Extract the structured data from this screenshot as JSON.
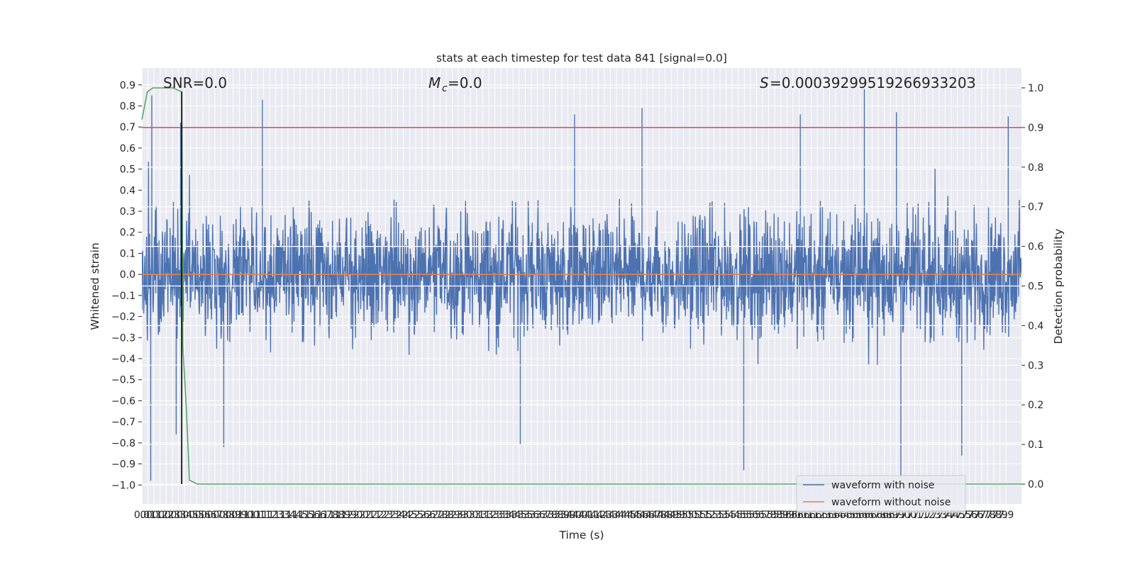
{
  "chart_data": {
    "type": "line",
    "title": "stats at each timestep for test data 841 [signal=0.0]",
    "xlabel": "Time (s)",
    "ylabel_left": "Whitened strain",
    "ylabel_right": "Detection probability",
    "xlim": [
      0.0,
      7.95
    ],
    "ylim_left": [
      -1.09,
      0.98
    ],
    "ylim_right": [
      -0.05,
      1.05
    ],
    "x_ticks": [
      "0.0",
      "0.1",
      "0.1",
      "0.2",
      "0.2",
      "0.3",
      "0.3",
      "0.4",
      "0.5",
      "0.5",
      "0.6",
      "0.6",
      "0.7",
      "0.8",
      "0.8",
      "0.9",
      "0.9",
      "1.0",
      "1.0",
      "1.1",
      "1.1",
      "1.2",
      "1.3",
      "1.3",
      "1.4",
      "1.4",
      "1.5",
      "1.5",
      "1.6",
      "1.6",
      "1.7",
      "1.8",
      "1.8",
      "1.9",
      "1.9",
      "2.0",
      "2.0",
      "2.1",
      "2.1",
      "2.2",
      "2.3",
      "2.3",
      "2.4",
      "2.4",
      "2.5",
      "2.5",
      "2.6",
      "2.6",
      "2.7",
      "2.8",
      "2.8",
      "2.9",
      "2.9",
      "3.0",
      "3.0",
      "3.1",
      "3.1",
      "3.2",
      "3.3",
      "3.3",
      "3.4",
      "3.4",
      "3.5",
      "3.5",
      "3.6",
      "3.6",
      "3.7",
      "3.8",
      "3.8",
      "3.9",
      "3.9",
      "4.0",
      "4.0",
      "4.1",
      "4.1",
      "4.2",
      "4.3",
      "4.3",
      "4.4",
      "4.4",
      "4.5",
      "4.5",
      "4.6",
      "4.6",
      "4.7",
      "4.8",
      "4.8",
      "4.9",
      "4.9",
      "5.0",
      "5.0",
      "5.1",
      "5.1",
      "5.2",
      "5.3",
      "5.3",
      "5.4",
      "5.4",
      "5.5",
      "5.5",
      "5.6",
      "5.6",
      "5.7",
      "5.8",
      "5.8",
      "5.9",
      "5.9",
      "6.0",
      "6.0",
      "6.1",
      "6.1",
      "6.2",
      "6.3",
      "6.3",
      "6.4",
      "6.4",
      "6.5",
      "6.5",
      "6.6",
      "6.6",
      "6.7",
      "6.8",
      "6.8",
      "6.9",
      "6.9",
      "7.0",
      "7.0",
      "7.1",
      "7.1",
      "7.2",
      "7.3",
      "7.3",
      "7.4",
      "7.4",
      "7.5",
      "7.5",
      "7.6",
      "7.6",
      "7.7",
      "7.8",
      "7.8",
      "7.9",
      "7.9"
    ],
    "y_ticks_left": [
      "−1.0",
      "−0.9",
      "−0.8",
      "−0.7",
      "−0.6",
      "−0.5",
      "−0.4",
      "−0.3",
      "−0.2",
      "−0.1",
      "0.0",
      "0.1",
      "0.2",
      "0.3",
      "0.4",
      "0.5",
      "0.6",
      "0.7",
      "0.8",
      "0.9"
    ],
    "y_ticks_right": [
      "0.0",
      "0.1",
      "0.2",
      "0.3",
      "0.4",
      "0.5",
      "0.6",
      "0.7",
      "0.8",
      "0.9",
      "1.0"
    ],
    "annotations": {
      "snr": "SNR=0.0",
      "mc": "=0.0",
      "mc_symbol": "M",
      "mc_sub": "c",
      "s": "=0.0003929951926693320З",
      "s_symbol": "S"
    },
    "series": [
      {
        "name": "waveform with noise",
        "axis": "left",
        "color": "#4c72b0",
        "style": "dense noise",
        "typical_range": [
          -0.4,
          0.4
        ],
        "extremes": [
          {
            "x": 0.08,
            "y": -0.98
          },
          {
            "x": 0.09,
            "y": 0.85
          },
          {
            "x": 0.31,
            "y": -0.76
          },
          {
            "x": 0.35,
            "y": 0.72
          },
          {
            "x": 0.74,
            "y": -0.82
          },
          {
            "x": 1.09,
            "y": 0.83
          },
          {
            "x": 3.42,
            "y": -0.81
          },
          {
            "x": 3.91,
            "y": 0.76
          },
          {
            "x": 4.52,
            "y": 0.79
          },
          {
            "x": 5.44,
            "y": -0.93
          },
          {
            "x": 5.95,
            "y": 0.76
          },
          {
            "x": 6.53,
            "y": 0.88
          },
          {
            "x": 6.82,
            "y": 0.77
          },
          {
            "x": 6.86,
            "y": -0.96
          },
          {
            "x": 7.41,
            "y": -0.86
          },
          {
            "x": 7.83,
            "y": 0.75
          }
        ]
      },
      {
        "name": "waveform without noise",
        "axis": "left",
        "color": "#dd8452",
        "x": [
          0.0,
          7.95
        ],
        "y": [
          0.0,
          0.0
        ]
      },
      {
        "name": "",
        "axis": "right",
        "color": "#55a868",
        "x": [
          0.0,
          0.05,
          0.1,
          0.2,
          0.28,
          0.36,
          0.37,
          0.4,
          0.43,
          0.5,
          7.95
        ],
        "y": [
          0.92,
          0.99,
          1.0,
          1.0,
          1.0,
          0.99,
          0.35,
          0.2,
          0.01,
          0.0,
          0.0
        ]
      }
    ],
    "hlines": [
      {
        "axis": "right",
        "y": 0.9,
        "color": "#c44e52"
      }
    ],
    "vlines": [
      {
        "x": 0.36,
        "y0_right": 0.0,
        "y1_right": 0.99,
        "color": "#000000"
      }
    ],
    "legend": {
      "location": "lower right",
      "entries": [
        "waveform with noise",
        "waveform without noise"
      ]
    },
    "grid": true
  }
}
